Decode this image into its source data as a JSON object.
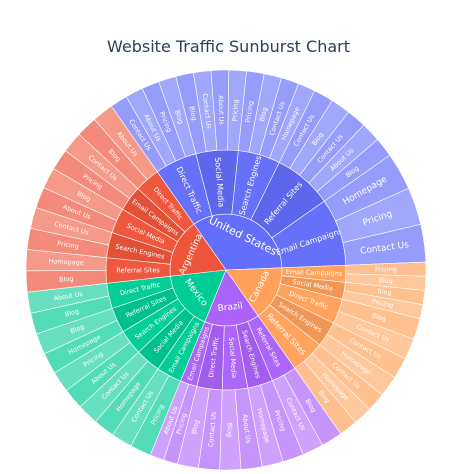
{
  "chart_data": {
    "type": "sunburst",
    "title": "Website Traffic Sunburst Chart",
    "countries": [
      {
        "name": "United States",
        "value": 30,
        "color": "#636efa",
        "sources": [
          {
            "name": "Direct Traffic",
            "value": 5,
            "pages": [
              "Contact Us",
              "About Us",
              "Pricing",
              "Blog"
            ]
          },
          {
            "name": "Social Media",
            "value": 5,
            "pages": [
              "Blog",
              "Contact Us",
              "About Us",
              "Pricing"
            ]
          },
          {
            "name": "Search Engines",
            "value": 5,
            "pages": [
              "Pricing",
              "Blog",
              "Contact Us",
              "Homepage"
            ]
          },
          {
            "name": "Referral Sites",
            "value": 7,
            "pages": [
              "Contact Us",
              "Blog",
              "Contact Us",
              "About Us",
              "Blog"
            ]
          },
          {
            "name": "Email Campaigns",
            "value": 8,
            "pages": [
              "Homepage",
              "Pricing",
              "Contact Us"
            ]
          }
        ]
      },
      {
        "name": "Canada",
        "value": 14,
        "color": "#ffa15a",
        "sources": [
          {
            "name": "Email Campaigns",
            "value": 2,
            "pages": [
              "Pricing",
              "Blog"
            ]
          },
          {
            "name": "Social Media",
            "value": 2,
            "pages": [
              "Blog",
              "Pricing"
            ]
          },
          {
            "name": "Direct Traffic",
            "value": 3,
            "pages": [
              "Blog",
              "Contact Us"
            ]
          },
          {
            "name": "Search Engines",
            "value": 3,
            "pages": [
              "Contact Us",
              "Homepage"
            ]
          },
          {
            "name": "Referral Sites",
            "value": 4,
            "pages": [
              "Contact Us",
              "Homepage",
              "Blog"
            ]
          }
        ]
      },
      {
        "name": "Brazil",
        "value": 14,
        "color": "#ab63fa",
        "sources": [
          {
            "name": "Referral Sites",
            "value": 3,
            "pages": [
              "Blog",
              "Contact Us"
            ]
          },
          {
            "name": "Search Engines",
            "value": 3,
            "pages": [
              "Pricing",
              "Homepage"
            ]
          },
          {
            "name": "Social Media",
            "value": 3,
            "pages": [
              "About Us",
              "Blog"
            ]
          },
          {
            "name": "Direct Traffic",
            "value": 3,
            "pages": [
              "Contact Us",
              "Blog"
            ]
          },
          {
            "name": "Email Campaigns",
            "value": 2,
            "pages": [
              "Pricing",
              "About Us"
            ]
          }
        ]
      },
      {
        "name": "Mexico",
        "value": 15,
        "color": "#00cc96",
        "sources": [
          {
            "name": "Email Campaigns",
            "value": 3,
            "pages": [
              "Pricing",
              "Contact Us"
            ]
          },
          {
            "name": "Social Media",
            "value": 3,
            "pages": [
              "Homepage",
              "Contact Us"
            ]
          },
          {
            "name": "Search Engines",
            "value": 3,
            "pages": [
              "About Us",
              "Pricing"
            ]
          },
          {
            "name": "Referral Sites",
            "value": 3,
            "pages": [
              "Homepage",
              "Blog"
            ]
          },
          {
            "name": "Direct Traffic",
            "value": 3,
            "pages": [
              "Blog",
              "About Us"
            ]
          }
        ]
      },
      {
        "name": "Argentina",
        "value": 15,
        "color": "#ef553b",
        "sources": [
          {
            "name": "Referral Sites",
            "value": 3,
            "pages": [
              "Blog",
              "Homepage"
            ]
          },
          {
            "name": "Search Engines",
            "value": 3,
            "pages": [
              "Pricing",
              "Contact Us"
            ]
          },
          {
            "name": "Social Media",
            "value": 3,
            "pages": [
              "About Us",
              "Blog"
            ]
          },
          {
            "name": "Email Campaigns",
            "value": 3,
            "pages": [
              "Pricing",
              "Contact Us"
            ]
          },
          {
            "name": "Direct Traffic",
            "value": 3,
            "pages": [
              "Blog",
              "About Us"
            ]
          }
        ]
      }
    ]
  }
}
